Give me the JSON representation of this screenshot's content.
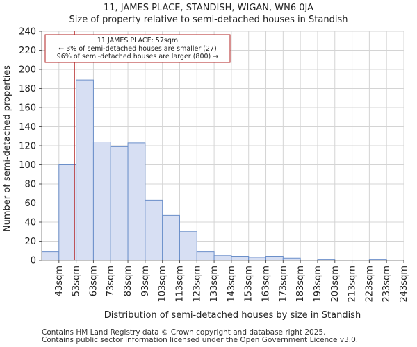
{
  "title_line1": "11, JAMES PLACE, STANDISH, WIGAN, WN6 0JA",
  "title_line2": "Size of property relative to semi-detached houses in Standish",
  "footer_line1": "Contains HM Land Registry data © Crown copyright and database right 2025.",
  "footer_line2": "Contains public sector information licensed under the Open Government Licence v3.0.",
  "chart_data": {
    "type": "bar",
    "xlabel": "Distribution of semi-detached houses by size in Standish",
    "ylabel": "Number of semi-detached properties",
    "ylim": [
      0,
      240
    ],
    "yticks": [
      0,
      20,
      40,
      60,
      80,
      100,
      120,
      140,
      160,
      180,
      200,
      220,
      240
    ],
    "bin_edges": [
      38,
      48,
      58,
      68,
      78,
      88,
      98,
      108,
      118,
      128,
      138,
      148,
      158,
      168,
      178,
      188,
      198,
      208,
      218,
      228,
      238,
      248
    ],
    "categories": [
      "43sqm",
      "53sqm",
      "63sqm",
      "73sqm",
      "83sqm",
      "93sqm",
      "103sqm",
      "113sqm",
      "123sqm",
      "133sqm",
      "143sqm",
      "153sqm",
      "163sqm",
      "173sqm",
      "183sqm",
      "193sqm",
      "203sqm",
      "213sqm",
      "223sqm",
      "233sqm",
      "243sqm"
    ],
    "values": [
      9,
      100,
      189,
      124,
      119,
      123,
      63,
      47,
      30,
      9,
      5,
      4,
      3,
      4,
      2,
      0,
      1,
      0,
      0,
      1,
      0
    ],
    "bar_color": "#d7dff3",
    "bar_edge_color": "#6b8fc9",
    "marker": {
      "value": 57,
      "color": "#b22222",
      "annotation": [
        "11 JAMES PLACE: 57sqm",
        "← 3% of semi-detached houses are smaller (27)",
        "96% of semi-detached houses are larger (800) →"
      ]
    }
  }
}
